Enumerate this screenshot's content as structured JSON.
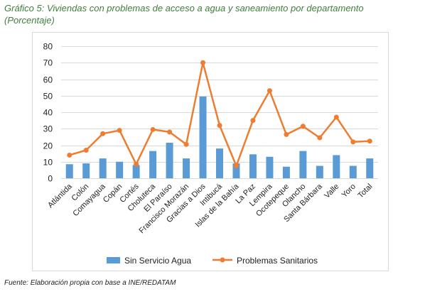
{
  "title_line1": "Gráfico 5: Viviendas con problemas de acceso a agua y saneamiento por departamento",
  "title_line2": "(Porcentaje)",
  "source": "Fuente: Elaboración propia con base a INE/REDATAM",
  "colors": {
    "bar": "#5b9bd5",
    "line": "#ed7d31",
    "title": "#3f7f3b",
    "grid": "#d9d9d9"
  },
  "chart_data": {
    "type": "bar",
    "categories": [
      "Atlántida",
      "Colón",
      "Comayagua",
      "Copán",
      "Cortés",
      "Choluteca",
      "El Paraíso",
      "Francisco Morazán",
      "Gracias a Dios",
      "Intibucá",
      "Islas de la Bahía",
      "La Paz",
      "Lempira",
      "Ocotepeque",
      "Olancho",
      "Santa Bárbara",
      "Valle",
      "Yoro",
      "Total"
    ],
    "series": [
      {
        "name": "Sin Servicio Agua",
        "kind": "bar",
        "values": [
          8.5,
          9,
          12,
          10,
          8,
          16.5,
          21.5,
          12,
          49.5,
          18,
          9,
          14.5,
          13,
          7,
          16.5,
          7.5,
          14,
          7.5,
          12
        ]
      },
      {
        "name": "Problemas Sanitarios",
        "kind": "line",
        "values": [
          14,
          17,
          27,
          29,
          8.5,
          29.5,
          28,
          20.5,
          70,
          32,
          7.5,
          35,
          53,
          26.5,
          31.5,
          24.5,
          37,
          22,
          22.5
        ]
      }
    ],
    "ylim": [
      0,
      80
    ],
    "yticks": [
      "0",
      "10",
      "20",
      "30",
      "40",
      "50",
      "60",
      "70",
      "80"
    ],
    "grid": true,
    "legend": "bottom"
  }
}
